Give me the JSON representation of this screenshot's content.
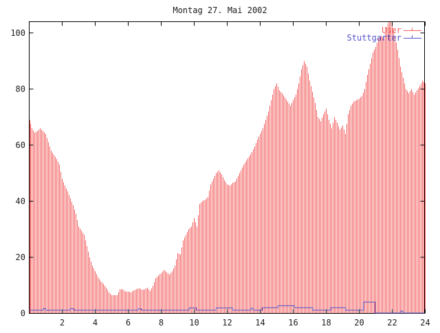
{
  "chart_data": {
    "type": "bar",
    "title": "Montag 27. Mai 2002",
    "xlabel": "",
    "ylabel": "",
    "x_range": [
      0,
      24
    ],
    "y_range": [
      0,
      104
    ],
    "x_ticks": [
      2,
      4,
      6,
      8,
      10,
      12,
      14,
      16,
      18,
      20,
      22,
      24
    ],
    "y_ticks": [
      0,
      20,
      40,
      60,
      80,
      100
    ],
    "grid": false,
    "legend_position": "top-right-inside",
    "sample_interval_minutes": 10,
    "series": [
      {
        "name": "User",
        "style": "impulses",
        "color": "#f25c5c",
        "values": [
          69,
          66,
          64.5,
          65,
          66,
          65,
          64,
          61,
          58,
          56.5,
          55,
          53,
          48,
          45.5,
          43.5,
          41,
          38.5,
          35.5,
          31,
          29.5,
          28,
          24,
          20,
          17,
          15,
          13,
          11.5,
          10.5,
          9.2,
          7.5,
          6.5,
          6.5,
          6.5,
          8.6,
          8.6,
          7.8,
          7.8,
          7.5,
          8.2,
          8.6,
          9,
          8.4,
          8.6,
          9.2,
          8,
          9.8,
          12.5,
          13.5,
          14.3,
          15.5,
          14.7,
          13.8,
          15,
          17,
          21.5,
          21,
          26,
          28,
          30,
          31,
          34,
          31,
          39,
          40,
          40.5,
          41.5,
          46,
          48,
          50,
          51,
          49.5,
          47.5,
          46,
          45.5,
          46.5,
          47,
          49,
          51,
          53,
          54.5,
          56,
          57.5,
          59.5,
          62,
          64,
          66,
          69,
          72,
          76,
          80,
          82,
          79.5,
          78.5,
          77,
          75.5,
          74,
          76,
          78,
          82,
          87,
          90,
          88,
          83,
          79,
          75,
          70,
          68.5,
          71,
          73,
          69,
          66,
          70,
          68,
          65.5,
          67,
          64,
          71,
          74,
          75.5,
          76,
          76.5,
          77.5,
          80,
          85,
          89,
          93,
          95,
          98,
          99,
          98,
          102,
          105,
          103,
          99,
          94,
          88,
          84,
          80,
          78.5,
          80,
          78,
          79.5,
          81,
          83,
          82
        ]
      },
      {
        "name": "Stuttgarter",
        "style": "steps",
        "color": "#5353cc",
        "segments": [
          [
            0,
            0.85,
            1
          ],
          [
            0.85,
            1.0,
            1.6
          ],
          [
            1.0,
            2.5,
            1
          ],
          [
            2.5,
            2.7,
            1.6
          ],
          [
            2.7,
            6.6,
            1
          ],
          [
            6.6,
            6.8,
            1.5
          ],
          [
            6.8,
            9.7,
            1
          ],
          [
            9.7,
            10.15,
            1.8
          ],
          [
            10.15,
            11.35,
            1
          ],
          [
            11.35,
            12.35,
            1.8
          ],
          [
            12.35,
            13.45,
            1
          ],
          [
            13.45,
            13.6,
            1.7
          ],
          [
            13.6,
            14.15,
            1
          ],
          [
            14.15,
            15.1,
            1.9
          ],
          [
            15.1,
            16.1,
            2.6
          ],
          [
            16.1,
            17.2,
            1.9
          ],
          [
            17.2,
            18.3,
            1
          ],
          [
            18.3,
            19.2,
            1.9
          ],
          [
            19.2,
            20.3,
            1
          ],
          [
            20.3,
            21.0,
            3.9
          ],
          [
            21.0,
            22.55,
            0
          ],
          [
            22.55,
            22.7,
            0.7
          ],
          [
            22.7,
            24,
            0
          ]
        ]
      }
    ],
    "colors": {
      "axis": "#000000",
      "text": "#1a1a1a",
      "background": "#ffffff"
    }
  }
}
